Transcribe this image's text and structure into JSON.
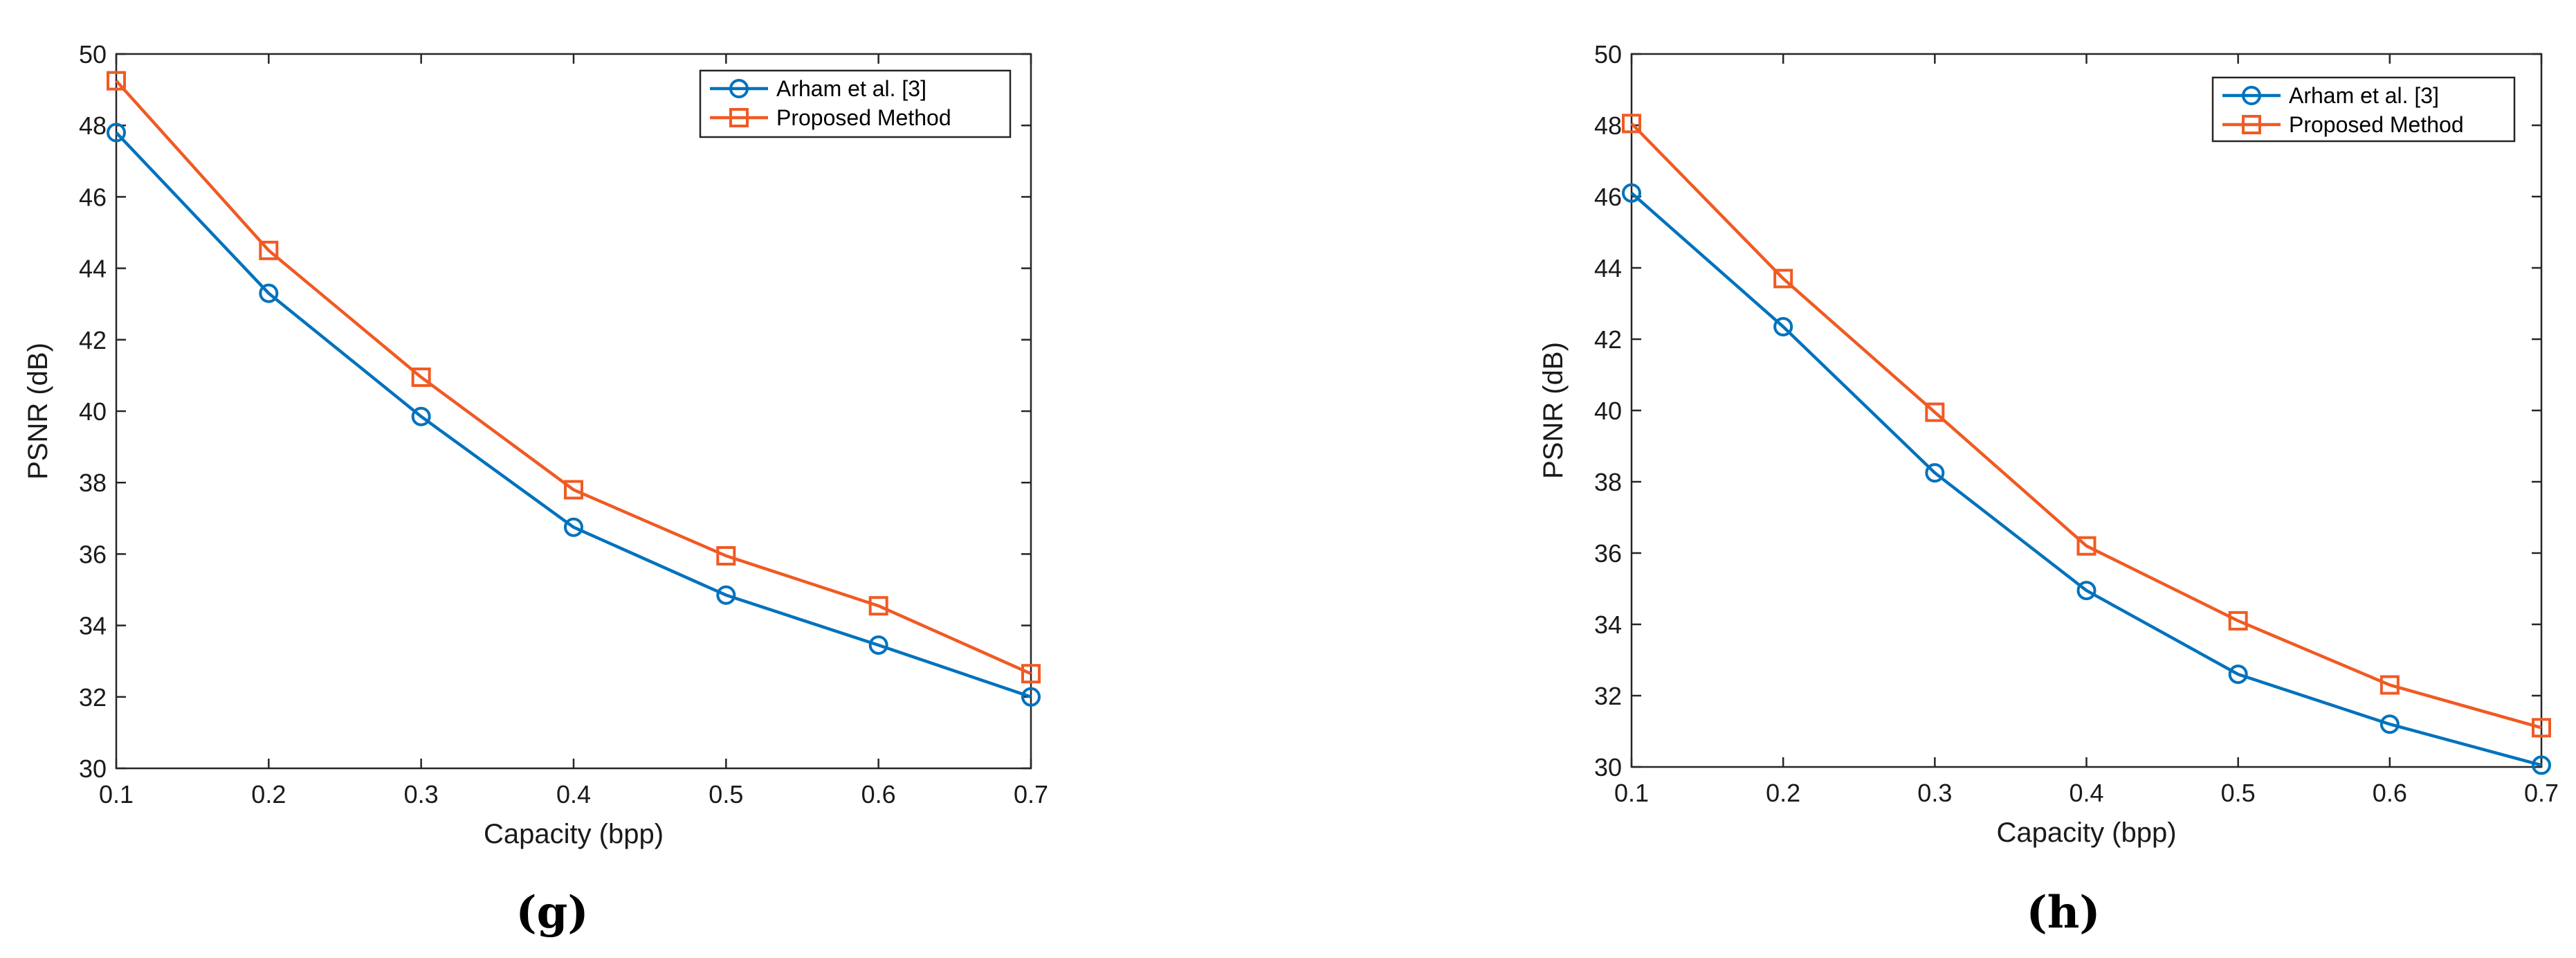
{
  "colors": {
    "arham": "#0072BD",
    "proposed": "#F05A23",
    "axis": "#262626"
  },
  "chart_data": [
    {
      "type": "line",
      "caption": "(g)",
      "xlabel": "Capacity (bpp)",
      "ylabel": "PSNR (dB)",
      "x": [
        0.1,
        0.2,
        0.3,
        0.4,
        0.5,
        0.6,
        0.7
      ],
      "xlim": [
        0.1,
        0.7
      ],
      "ylim": [
        30,
        50
      ],
      "xticks": [
        "0.1",
        "0.2",
        "0.3",
        "0.4",
        "0.5",
        "0.6",
        "0.7"
      ],
      "yticks": [
        "30",
        "32",
        "34",
        "36",
        "38",
        "40",
        "42",
        "44",
        "46",
        "48",
        "50"
      ],
      "legend_position": "top-right",
      "series": [
        {
          "name": "Arham et al. [3]",
          "marker": "circle",
          "values": [
            47.8,
            43.3,
            39.85,
            36.75,
            34.85,
            33.45,
            32.0
          ]
        },
        {
          "name": "Proposed Method",
          "marker": "square",
          "values": [
            49.25,
            44.5,
            40.95,
            37.8,
            35.95,
            34.55,
            32.65
          ]
        }
      ]
    },
    {
      "type": "line",
      "caption": "(h)",
      "xlabel": "Capacity (bpp)",
      "ylabel": "PSNR (dB)",
      "x": [
        0.1,
        0.2,
        0.3,
        0.4,
        0.5,
        0.6,
        0.7
      ],
      "xlim": [
        0.1,
        0.7
      ],
      "ylim": [
        30,
        50
      ],
      "xticks": [
        "0.1",
        "0.2",
        "0.3",
        "0.4",
        "0.5",
        "0.6",
        "0.7"
      ],
      "yticks": [
        "30",
        "32",
        "34",
        "36",
        "38",
        "40",
        "42",
        "44",
        "46",
        "48",
        "50"
      ],
      "legend_position": "top-right",
      "series": [
        {
          "name": "Arham et al. [3]",
          "marker": "circle",
          "values": [
            46.1,
            42.35,
            38.25,
            34.95,
            32.6,
            31.2,
            30.05
          ]
        },
        {
          "name": "Proposed Method",
          "marker": "square",
          "values": [
            48.05,
            43.7,
            39.95,
            36.2,
            34.1,
            32.3,
            31.1
          ]
        }
      ]
    }
  ]
}
